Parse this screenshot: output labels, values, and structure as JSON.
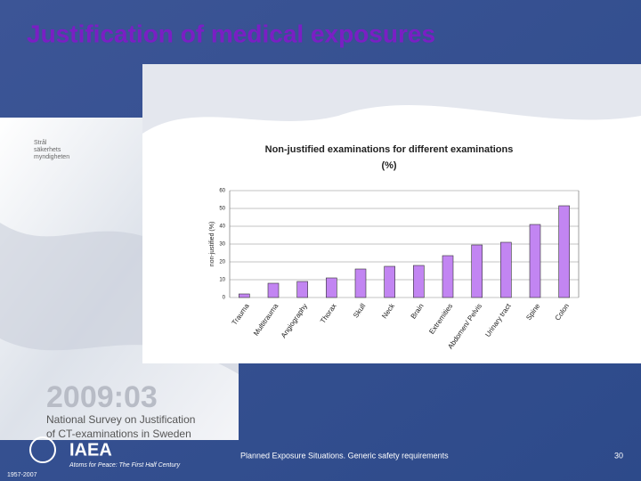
{
  "slide": {
    "title": "Justification of medical exposures",
    "footer": "Planned Exposure Situations. Generic safety requirements",
    "page": "30"
  },
  "logo": {
    "name": "IAEA",
    "tagline": "Atoms for Peace: The First Half Century",
    "years": "1957-2007"
  },
  "cover": {
    "agency": [
      "Strål",
      "säkerhets",
      "myndigheten"
    ],
    "number": "2009:03",
    "title_lines": [
      "National Survey on Justification",
      "of CT-examinations in Sweden"
    ]
  },
  "chart_data": {
    "type": "bar",
    "title": [
      "Non-justified examinations for different examinations",
      "(%)"
    ],
    "y_label": "non-justified (%)",
    "categories": [
      "Trauma",
      "Multitrauma",
      "Angiography",
      "Thorax",
      "Skull",
      "Neck",
      "Brain",
      "Extremities",
      "Abdomen/ Pelvis",
      "Urinary tract",
      "Spine",
      "Colon"
    ],
    "values": [
      2,
      8,
      9,
      11,
      16,
      17.5,
      18,
      23.5,
      29.5,
      31,
      41,
      51.5
    ],
    "color": "#c285f2",
    "ylim": [
      0,
      60
    ],
    "yticks": [
      0,
      10,
      20,
      30,
      40,
      50,
      60
    ],
    "grid": true
  }
}
